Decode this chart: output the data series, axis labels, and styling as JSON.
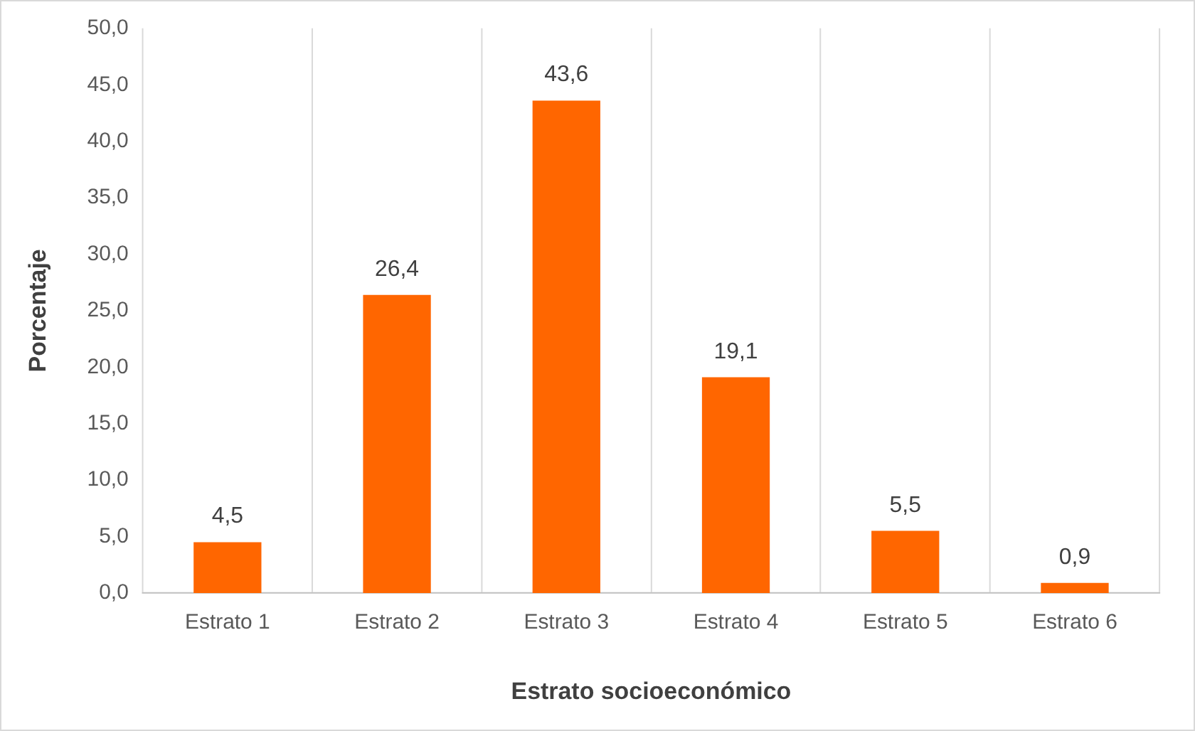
{
  "chart_data": {
    "type": "bar",
    "xlabel": "Estrato socioeconómico",
    "ylabel": "Porcentaje",
    "categories": [
      "Estrato 1",
      "Estrato 2",
      "Estrato 3",
      "Estrato 4",
      "Estrato 5",
      "Estrato 6"
    ],
    "values": [
      4.5,
      26.4,
      43.6,
      19.1,
      5.5,
      0.9
    ],
    "value_labels": [
      "4,5",
      "26,4",
      "43,6",
      "19,1",
      "5,5",
      "0,9"
    ],
    "color": "#ff6600",
    "ylim": [
      0,
      50
    ],
    "yticks": [
      {
        "value": 0,
        "label": "0,0"
      },
      {
        "value": 5,
        "label": "5,0"
      },
      {
        "value": 10,
        "label": "10,0"
      },
      {
        "value": 15,
        "label": "15,0"
      },
      {
        "value": 20,
        "label": "20,0"
      },
      {
        "value": 25,
        "label": "25,0"
      },
      {
        "value": 30,
        "label": "30,0"
      },
      {
        "value": 35,
        "label": "35,0"
      },
      {
        "value": 40,
        "label": "40,0"
      },
      {
        "value": 45,
        "label": "45,0"
      },
      {
        "value": 50,
        "label": "50,0"
      }
    ],
    "grid": "x"
  }
}
